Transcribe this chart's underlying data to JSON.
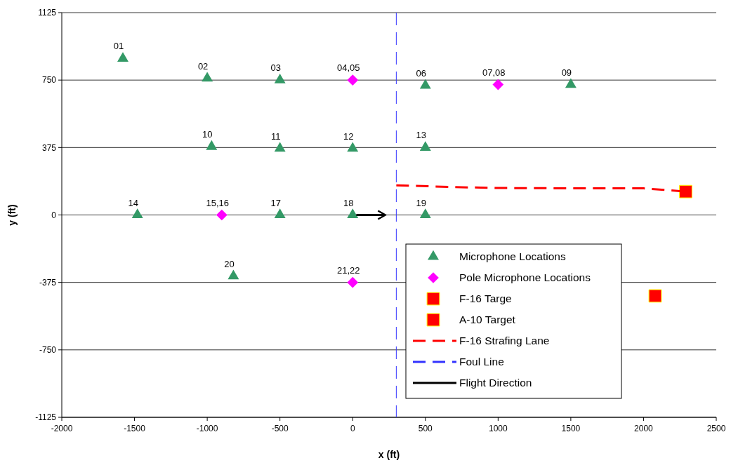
{
  "chart_data": {
    "type": "scatter",
    "xlabel": "x (ft)",
    "ylabel": "y (ft)",
    "xlim": [
      -2000,
      2500
    ],
    "xticks": [
      -2000,
      -1500,
      -1000,
      -500,
      0,
      500,
      1000,
      1500,
      2000,
      2500
    ],
    "ylim": [
      -1125,
      1125
    ],
    "yticks": [
      -1125,
      -750,
      -375,
      0,
      375,
      750,
      1125
    ],
    "grid": "y",
    "legend": "bottom right",
    "series": [
      {
        "name": "Microphone Locations",
        "marker": "triangle",
        "color": "#339966",
        "x": [
          -1580,
          -1000,
          -500,
          500,
          1500,
          -970,
          -500,
          0,
          500,
          -1480,
          -500,
          0,
          500,
          -820
        ],
        "values": [
          870,
          760,
          750,
          720,
          725,
          380,
          370,
          370,
          375,
          0,
          0,
          0,
          0,
          -340
        ]
      },
      {
        "name": "Pole Microphone Locations",
        "marker": "diamond",
        "color": "#ff00ff",
        "x": [
          0,
          1000,
          -900,
          0
        ],
        "values": [
          750,
          725,
          0,
          -375
        ]
      },
      {
        "name": "F-16 Targe",
        "marker": "square",
        "color": "#ff0000",
        "x": [
          2290
        ],
        "values": [
          130
        ]
      },
      {
        "name": "A-10 Target",
        "marker": "square",
        "color": "#ff0000",
        "x": [
          2080
        ],
        "values": [
          -450
        ]
      },
      {
        "name": "F-16 Strafing Lane",
        "type": "line",
        "line_style": "dashed",
        "color": "#ff0000",
        "x": [
          300,
          700,
          1000,
          1500,
          2000,
          2290
        ],
        "values": [
          165,
          155,
          150,
          148,
          148,
          130
        ]
      },
      {
        "name": "Foul Line",
        "type": "line",
        "line_style": "dashed",
        "color": "#3333ff",
        "x": [
          300,
          300
        ],
        "values": [
          1125,
          -1125
        ]
      },
      {
        "name": "Flight Direction",
        "type": "line",
        "line_style": "solid",
        "color": "#000000",
        "x": [
          25,
          225
        ],
        "values": [
          0,
          0
        ]
      }
    ],
    "annotations": [
      {
        "text": "01",
        "x": -1580,
        "y": 870
      },
      {
        "text": "02",
        "x": -1000,
        "y": 760
      },
      {
        "text": "03",
        "x": -500,
        "y": 750
      },
      {
        "text": "04,05",
        "x": 0,
        "y": 750
      },
      {
        "text": "06",
        "x": 500,
        "y": 720
      },
      {
        "text": "07,08",
        "x": 1000,
        "y": 725
      },
      {
        "text": "09",
        "x": 1500,
        "y": 725
      },
      {
        "text": "10",
        "x": -970,
        "y": 380
      },
      {
        "text": "11",
        "x": -500,
        "y": 370
      },
      {
        "text": "12",
        "x": 0,
        "y": 370
      },
      {
        "text": "13",
        "x": 500,
        "y": 375
      },
      {
        "text": "14",
        "x": -1480,
        "y": 0
      },
      {
        "text": "15,16",
        "x": -900,
        "y": 0
      },
      {
        "text": "17",
        "x": -500,
        "y": 0
      },
      {
        "text": "18",
        "x": 0,
        "y": 0
      },
      {
        "text": "19",
        "x": 500,
        "y": 0
      },
      {
        "text": "20",
        "x": -820,
        "y": -340
      },
      {
        "text": "21,22",
        "x": 0,
        "y": -375
      }
    ]
  }
}
